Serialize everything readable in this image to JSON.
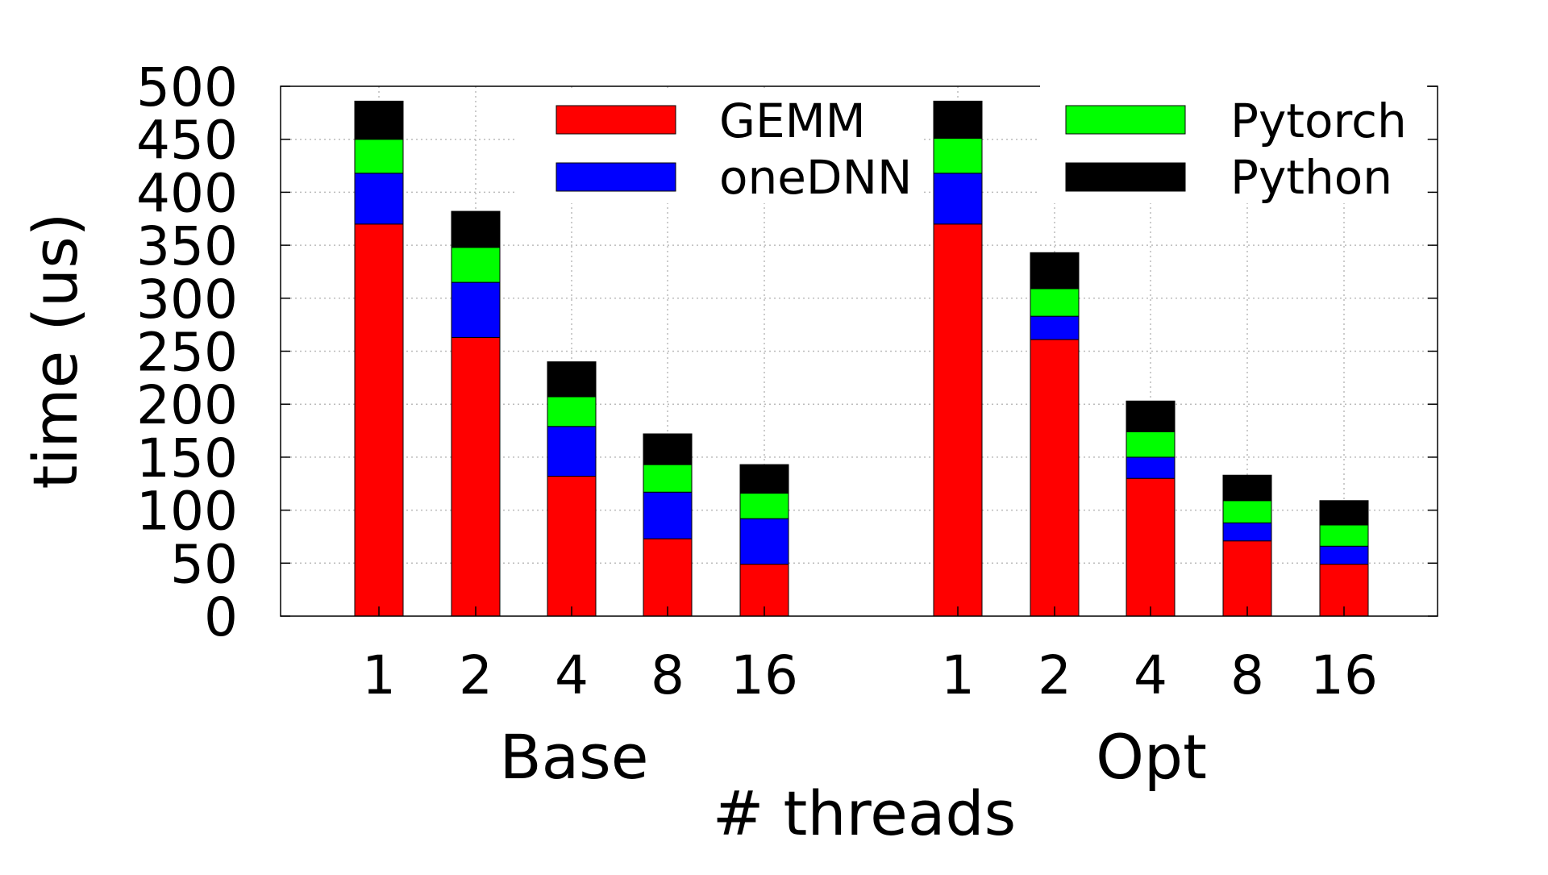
{
  "chart_data": {
    "type": "bar",
    "stacked": true,
    "xlabel": "# threads",
    "ylabel": "time (us)",
    "ylim": [
      0,
      500
    ],
    "yticks": [
      "0",
      "50",
      "100",
      "150",
      "200",
      "250",
      "300",
      "350",
      "400",
      "450",
      "500"
    ],
    "grid": true,
    "legend_position": "top",
    "groups": [
      {
        "name": "Base",
        "categories": [
          "1",
          "2",
          "4",
          "8",
          "16"
        ],
        "series": [
          {
            "name": "GEMM",
            "values": [
              370,
              263,
              132,
              73,
              49
            ]
          },
          {
            "name": "oneDNN",
            "values": [
              48,
              52,
              47,
              44,
              43
            ]
          },
          {
            "name": "Pytorch",
            "values": [
              32,
              33,
              28,
              26,
              24
            ]
          },
          {
            "name": "Python",
            "values": [
              36,
              34,
              33,
              29,
              27
            ]
          }
        ]
      },
      {
        "name": "Opt",
        "categories": [
          "1",
          "2",
          "4",
          "8",
          "16"
        ],
        "series": [
          {
            "name": "GEMM",
            "values": [
              370,
              261,
              130,
              71,
              49
            ]
          },
          {
            "name": "oneDNN",
            "values": [
              48,
              22,
              20,
              17,
              17
            ]
          },
          {
            "name": "Pytorch",
            "values": [
              33,
              26,
              24,
              21,
              20
            ]
          },
          {
            "name": "Python",
            "values": [
              35,
              34,
              29,
              24,
              23
            ]
          }
        ]
      }
    ],
    "colors": {
      "GEMM": "#ff0000",
      "oneDNN": "#0000ff",
      "Pytorch": "#00ff00",
      "Python": "#000000"
    }
  }
}
